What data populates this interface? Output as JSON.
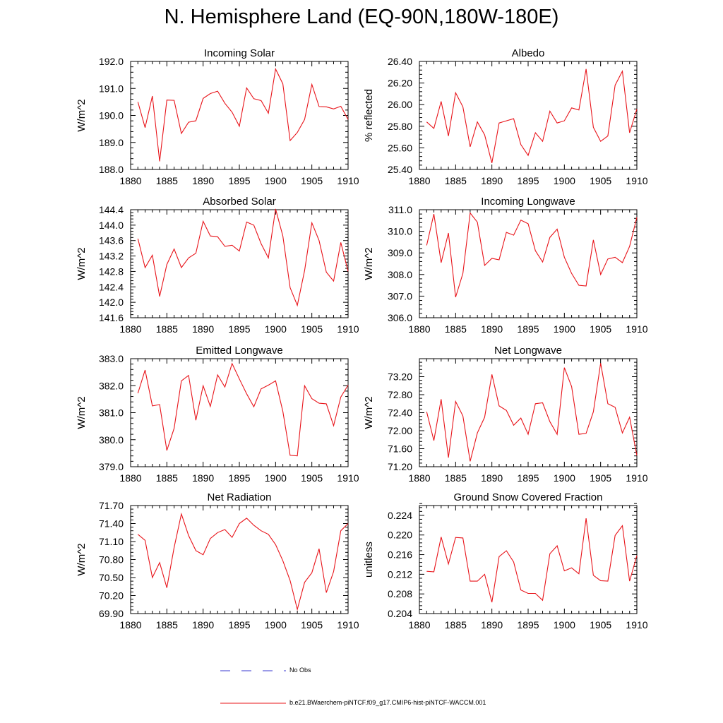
{
  "page": {
    "title": "N. Hemisphere Land (EQ-90N,180W-180E)",
    "legend": {
      "no_obs_label": "No Obs",
      "no_obs_color": "#3a3ad0",
      "model_label": "b.e21.BWaerchem-piNTCF.f09_g17.CMIP6-hist-piNTCF-WACCM.001",
      "model_color": "#e8141a"
    }
  },
  "chart_data": [
    {
      "type": "line",
      "title": "Incoming Solar",
      "ylabel": "W/m^2",
      "xlim": [
        1880,
        1910
      ],
      "ylim": [
        188.0,
        192.0
      ],
      "xticks": [
        "1880",
        "1885",
        "1890",
        "1895",
        "1900",
        "1905",
        "1910"
      ],
      "yticks": [
        "188.0",
        "189.0",
        "190.0",
        "191.0",
        "192.0"
      ],
      "x": [
        1881,
        1882,
        1883,
        1884,
        1885,
        1886,
        1887,
        1888,
        1889,
        1890,
        1891,
        1892,
        1893,
        1894,
        1895,
        1896,
        1897,
        1898,
        1899,
        1900,
        1901,
        1902,
        1903,
        1904,
        1905,
        1906,
        1907,
        1908,
        1909,
        1910
      ],
      "values": [
        190.5,
        189.55,
        190.72,
        188.3,
        190.57,
        190.56,
        189.33,
        189.75,
        189.8,
        190.63,
        190.81,
        190.9,
        190.45,
        190.12,
        189.6,
        191.02,
        190.62,
        190.55,
        190.08,
        191.72,
        191.17,
        189.07,
        189.37,
        189.85,
        191.15,
        190.33,
        190.32,
        190.24,
        190.34,
        189.85
      ],
      "color": "#e8141a"
    },
    {
      "type": "line",
      "title": "Albedo",
      "ylabel": "% reflected",
      "xlim": [
        1880,
        1910
      ],
      "ylim": [
        25.4,
        26.4
      ],
      "xticks": [
        "1880",
        "1885",
        "1890",
        "1895",
        "1900",
        "1905",
        "1910"
      ],
      "yticks": [
        "25.40",
        "25.60",
        "25.80",
        "26.00",
        "26.20",
        "26.40"
      ],
      "x": [
        1881,
        1882,
        1883,
        1884,
        1885,
        1886,
        1887,
        1888,
        1889,
        1890,
        1891,
        1892,
        1893,
        1894,
        1895,
        1896,
        1897,
        1898,
        1899,
        1900,
        1901,
        1902,
        1903,
        1904,
        1905,
        1906,
        1907,
        1908,
        1909,
        1910
      ],
      "values": [
        25.84,
        25.78,
        26.03,
        25.71,
        26.11,
        25.98,
        25.61,
        25.84,
        25.72,
        25.46,
        25.83,
        25.85,
        25.87,
        25.63,
        25.53,
        25.74,
        25.66,
        25.94,
        25.83,
        25.85,
        25.97,
        25.95,
        26.33,
        25.79,
        25.66,
        25.71,
        26.18,
        26.31,
        25.74,
        25.96
      ],
      "color": "#e8141a"
    },
    {
      "type": "line",
      "title": "Absorbed Solar",
      "ylabel": "W/m^2",
      "xlim": [
        1880,
        1910
      ],
      "ylim": [
        141.6,
        144.4
      ],
      "xticks": [
        "1880",
        "1885",
        "1890",
        "1895",
        "1900",
        "1905",
        "1910"
      ],
      "yticks": [
        "141.6",
        "142.0",
        "142.4",
        "142.8",
        "143.2",
        "143.6",
        "144.0",
        "144.4"
      ],
      "x": [
        1881,
        1882,
        1883,
        1884,
        1885,
        1886,
        1887,
        1888,
        1889,
        1890,
        1891,
        1892,
        1893,
        1894,
        1895,
        1896,
        1897,
        1898,
        1899,
        1900,
        1901,
        1902,
        1903,
        1904,
        1905,
        1906,
        1907,
        1908,
        1909,
        1910
      ],
      "values": [
        143.65,
        142.9,
        143.22,
        142.15,
        142.98,
        143.38,
        142.9,
        143.15,
        143.27,
        144.1,
        143.72,
        143.7,
        143.45,
        143.48,
        143.33,
        144.08,
        144.0,
        143.52,
        143.15,
        144.42,
        143.72,
        142.38,
        141.92,
        142.82,
        144.06,
        143.6,
        142.78,
        142.55,
        143.55,
        142.8
      ],
      "color": "#e8141a"
    },
    {
      "type": "line",
      "title": "Incoming Longwave",
      "ylabel": "W/m^2",
      "xlim": [
        1880,
        1910
      ],
      "ylim": [
        306.0,
        311.0
      ],
      "xticks": [
        "1880",
        "1885",
        "1890",
        "1895",
        "1900",
        "1905",
        "1910"
      ],
      "yticks": [
        "306.0",
        "307.0",
        "308.0",
        "309.0",
        "310.0",
        "311.0"
      ],
      "x": [
        1881,
        1882,
        1883,
        1884,
        1885,
        1886,
        1887,
        1888,
        1889,
        1890,
        1891,
        1892,
        1893,
        1894,
        1895,
        1896,
        1897,
        1898,
        1899,
        1900,
        1901,
        1902,
        1903,
        1904,
        1905,
        1906,
        1907,
        1908,
        1909,
        1910
      ],
      "values": [
        309.35,
        310.8,
        308.55,
        309.92,
        306.95,
        308.05,
        310.85,
        310.42,
        308.42,
        308.75,
        308.68,
        309.95,
        309.82,
        310.52,
        310.35,
        309.1,
        308.58,
        309.72,
        310.1,
        308.8,
        308.05,
        307.5,
        307.47,
        309.6,
        308.0,
        308.72,
        308.8,
        308.55,
        309.3,
        310.65
      ],
      "color": "#e8141a"
    },
    {
      "type": "line",
      "title": "Emitted Longwave",
      "ylabel": "W/m^2",
      "xlim": [
        1880,
        1910
      ],
      "ylim": [
        379.0,
        383.0
      ],
      "xticks": [
        "1880",
        "1885",
        "1890",
        "1895",
        "1900",
        "1905",
        "1910"
      ],
      "yticks": [
        "379.0",
        "380.0",
        "381.0",
        "382.0",
        "383.0"
      ],
      "x": [
        1881,
        1882,
        1883,
        1884,
        1885,
        1886,
        1887,
        1888,
        1889,
        1890,
        1891,
        1892,
        1893,
        1894,
        1895,
        1896,
        1897,
        1898,
        1899,
        1900,
        1901,
        1902,
        1903,
        1904,
        1905,
        1906,
        1907,
        1908,
        1909,
        1910
      ],
      "values": [
        381.72,
        382.58,
        381.25,
        381.3,
        379.6,
        380.42,
        382.18,
        382.38,
        380.72,
        382.0,
        381.23,
        382.4,
        381.95,
        382.82,
        382.25,
        381.7,
        381.22,
        381.88,
        382.02,
        382.18,
        381.05,
        379.42,
        379.4,
        382.0,
        381.52,
        381.35,
        381.33,
        380.52,
        381.58,
        382.02
      ],
      "color": "#e8141a"
    },
    {
      "type": "line",
      "title": "Net Longwave",
      "ylabel": "W/m^2",
      "xlim": [
        1880,
        1910
      ],
      "ylim": [
        71.2,
        73.6
      ],
      "xticks": [
        "1880",
        "1885",
        "1890",
        "1895",
        "1900",
        "1905",
        "1910"
      ],
      "yticks": [
        "71.20",
        "71.60",
        "72.00",
        "72.40",
        "72.80",
        "73.20"
      ],
      "x": [
        1881,
        1882,
        1883,
        1884,
        1885,
        1886,
        1887,
        1888,
        1889,
        1890,
        1891,
        1892,
        1893,
        1894,
        1895,
        1896,
        1897,
        1898,
        1899,
        1900,
        1901,
        1902,
        1903,
        1904,
        1905,
        1906,
        1907,
        1908,
        1909,
        1910
      ],
      "values": [
        72.42,
        71.78,
        72.7,
        71.4,
        72.65,
        72.33,
        71.32,
        71.95,
        72.3,
        73.25,
        72.55,
        72.45,
        72.12,
        72.28,
        71.92,
        72.6,
        72.62,
        72.2,
        71.92,
        73.4,
        72.98,
        71.92,
        71.94,
        72.42,
        73.5,
        72.6,
        72.52,
        71.95,
        72.3,
        71.45
      ],
      "color": "#e8141a"
    },
    {
      "type": "line",
      "title": "Net Radiation",
      "ylabel": "W/m^2",
      "xlim": [
        1880,
        1910
      ],
      "ylim": [
        69.9,
        71.7
      ],
      "xticks": [
        "1880",
        "1885",
        "1890",
        "1895",
        "1900",
        "1905",
        "1910"
      ],
      "yticks": [
        "69.90",
        "70.20",
        "70.50",
        "70.80",
        "71.10",
        "71.40",
        "71.70"
      ],
      "x": [
        1881,
        1882,
        1883,
        1884,
        1885,
        1886,
        1887,
        1888,
        1889,
        1890,
        1891,
        1892,
        1893,
        1894,
        1895,
        1896,
        1897,
        1898,
        1899,
        1900,
        1901,
        1902,
        1903,
        1904,
        1905,
        1906,
        1907,
        1908,
        1909,
        1910
      ],
      "values": [
        71.22,
        71.12,
        70.5,
        70.75,
        70.33,
        71.0,
        71.56,
        71.2,
        70.95,
        70.88,
        71.15,
        71.25,
        71.3,
        71.17,
        71.4,
        71.49,
        71.37,
        71.28,
        71.22,
        71.05,
        70.78,
        70.45,
        69.97,
        70.42,
        70.58,
        70.98,
        70.25,
        70.6,
        71.28,
        71.4
      ],
      "color": "#e8141a"
    },
    {
      "type": "line",
      "title": "Ground Snow Covered Fraction",
      "ylabel": "unitless",
      "xlim": [
        1880,
        1910
      ],
      "ylim": [
        0.204,
        0.226
      ],
      "xticks": [
        "1880",
        "1885",
        "1890",
        "1895",
        "1900",
        "1905",
        "1910"
      ],
      "yticks": [
        "0.204",
        "0.208",
        "0.212",
        "0.216",
        "0.220",
        "0.224"
      ],
      "x": [
        1881,
        1882,
        1883,
        1884,
        1885,
        1886,
        1887,
        1888,
        1889,
        1890,
        1891,
        1892,
        1893,
        1894,
        1895,
        1896,
        1897,
        1898,
        1899,
        1900,
        1901,
        1902,
        1903,
        1904,
        1905,
        1906,
        1907,
        1908,
        1909,
        1910
      ],
      "values": [
        0.2126,
        0.2125,
        0.2196,
        0.2141,
        0.2195,
        0.2194,
        0.2106,
        0.2106,
        0.212,
        0.2063,
        0.2156,
        0.2168,
        0.2145,
        0.2088,
        0.2081,
        0.2081,
        0.2067,
        0.2162,
        0.2178,
        0.2127,
        0.2133,
        0.2121,
        0.2234,
        0.2118,
        0.2107,
        0.2106,
        0.2199,
        0.2219,
        0.2106,
        0.2158
      ],
      "color": "#e8141a"
    }
  ]
}
